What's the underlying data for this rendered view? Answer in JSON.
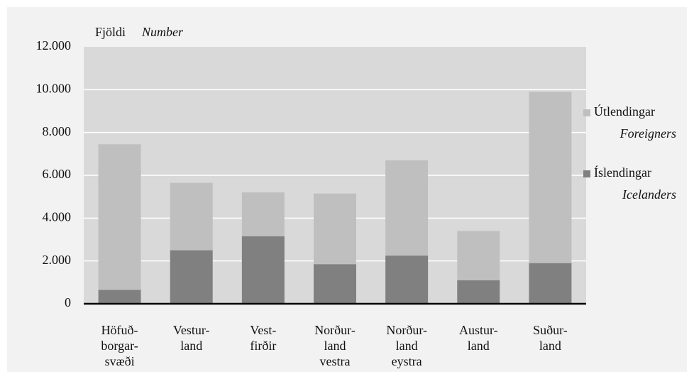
{
  "chart_data": {
    "type": "stacked_bar",
    "ylabel": "Fjöldi",
    "ylabel_en": "Number",
    "categories": [
      [
        "Höfuð-",
        "borgar-",
        "svæði"
      ],
      [
        "Vestur-",
        "land"
      ],
      [
        "Vest-",
        "firðir"
      ],
      [
        "Norður-",
        "land",
        "vestra"
      ],
      [
        "Norður-",
        "land",
        "eystra"
      ],
      [
        "Austur-",
        "land"
      ],
      [
        "Suður-",
        "land"
      ]
    ],
    "series": [
      {
        "name": "Útlendingar",
        "name_en": "Foreigners",
        "color": "#bfbfbf",
        "values": [
          6800,
          3150,
          2050,
          3300,
          4450,
          2300,
          8000
        ]
      },
      {
        "name": "Íslendingar",
        "name_en": "Icelanders",
        "color": "#808080",
        "values": [
          650,
          2500,
          3150,
          1850,
          2250,
          1100,
          1900
        ]
      }
    ],
    "ylim": [
      0,
      12000
    ],
    "yticks": [
      0,
      {
        "value": 2000,
        "label": "2.000"
      },
      {
        "value": 4000,
        "label": "4.000"
      },
      {
        "value": 6000,
        "label": "6.000"
      },
      {
        "value": 8000,
        "label": "8.000"
      },
      {
        "value": 10000,
        "label": "10.000"
      },
      {
        "value": 12000,
        "label": "12.000"
      }
    ],
    "grid": true,
    "legend": "right"
  }
}
